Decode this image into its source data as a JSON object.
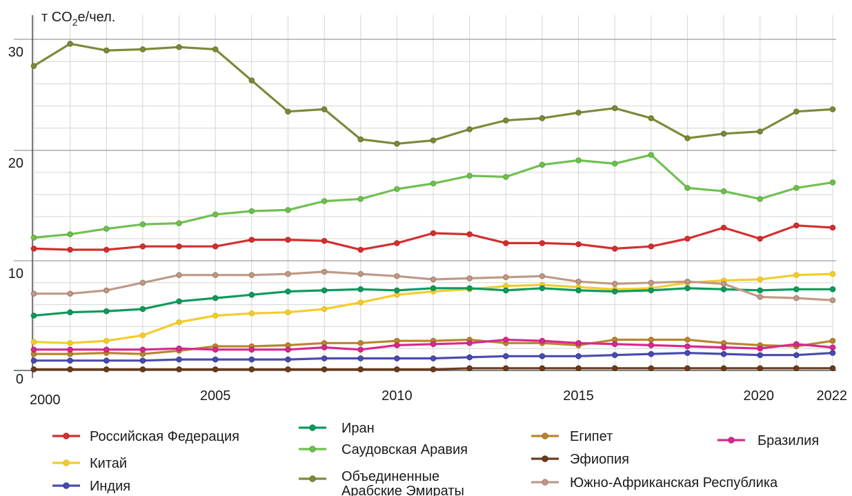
{
  "chart_data": {
    "type": "line",
    "unit": {
      "prefix": "т CO",
      "sub": "2",
      "suffix": "е/чел."
    },
    "y_tick_labels": [
      "0",
      "10",
      "20",
      "30"
    ],
    "x_tick_labels": [
      "2000",
      "2005",
      "2010",
      "2015",
      "2020",
      "2022"
    ],
    "x": [
      2000,
      2001,
      2002,
      2003,
      2004,
      2005,
      2006,
      2007,
      2008,
      2009,
      2010,
      2011,
      2012,
      2013,
      2014,
      2015,
      2016,
      2017,
      2018,
      2019,
      2020,
      2021,
      2022
    ],
    "grid": true,
    "axis_segments": [
      {
        "data_range": [
          0,
          10
        ]
      },
      {
        "data_range": [
          10,
          20
        ]
      },
      {
        "data_range": [
          20,
          30
        ]
      }
    ],
    "legend_position": "bottom",
    "series": [
      {
        "name": "Российская Федерация",
        "color": "#d32f2f",
        "marker": "#c62828",
        "values": [
          11.1,
          11.0,
          11.0,
          11.3,
          11.3,
          11.3,
          11.9,
          11.9,
          11.8,
          11.0,
          11.6,
          12.5,
          12.4,
          11.6,
          11.6,
          11.5,
          11.1,
          11.3,
          12.0,
          13.0,
          12.0,
          13.2,
          13.0
        ]
      },
      {
        "name": "Китай",
        "color": "#f2cc2e",
        "marker": "#e8c020",
        "values": [
          2.6,
          2.5,
          2.7,
          3.2,
          4.4,
          5.0,
          5.2,
          5.3,
          5.6,
          6.2,
          6.9,
          7.2,
          7.4,
          7.7,
          7.8,
          7.6,
          7.4,
          7.5,
          8.0,
          8.2,
          8.3,
          8.7,
          8.8
        ]
      },
      {
        "name": "Индия",
        "color": "#4a4cb0",
        "marker": "#3b3d9a",
        "values": [
          0.9,
          0.9,
          0.9,
          0.9,
          1.0,
          1.0,
          1.0,
          1.0,
          1.1,
          1.1,
          1.1,
          1.1,
          1.2,
          1.3,
          1.3,
          1.3,
          1.4,
          1.5,
          1.6,
          1.5,
          1.4,
          1.4,
          1.6
        ]
      },
      {
        "name": "Иран",
        "color": "#0e9a5c",
        "marker": "#0b8a50",
        "values": [
          5.0,
          5.3,
          5.4,
          5.6,
          6.3,
          6.6,
          6.9,
          7.2,
          7.3,
          7.4,
          7.3,
          7.5,
          7.5,
          7.3,
          7.5,
          7.3,
          7.2,
          7.3,
          7.5,
          7.4,
          7.3,
          7.4,
          7.4
        ]
      },
      {
        "name": "Саудовская Аравия",
        "color": "#70c050",
        "marker": "#5eae40",
        "values": [
          12.1,
          12.4,
          12.9,
          13.3,
          13.4,
          14.2,
          14.5,
          14.6,
          15.4,
          15.6,
          16.5,
          17.0,
          17.7,
          17.6,
          18.7,
          19.1,
          18.8,
          19.6,
          16.6,
          16.3,
          15.6,
          16.6,
          17.1
        ]
      },
      {
        "name": "Объединенные Арабские Эмираты",
        "color": "#7a8b3a",
        "marker": "#6a7a2e",
        "values": [
          27.6,
          29.6,
          29.0,
          29.1,
          29.3,
          29.1,
          26.3,
          23.5,
          23.7,
          21.0,
          20.6,
          20.9,
          21.9,
          22.7,
          22.9,
          23.4,
          23.8,
          22.9,
          21.1,
          21.5,
          21.7,
          23.5,
          23.7
        ]
      },
      {
        "name": "Египет",
        "color": "#b8862f",
        "marker": "#a67626",
        "values": [
          1.5,
          1.5,
          1.6,
          1.5,
          1.8,
          2.2,
          2.2,
          2.3,
          2.5,
          2.5,
          2.7,
          2.7,
          2.8,
          2.5,
          2.5,
          2.3,
          2.8,
          2.8,
          2.8,
          2.5,
          2.3,
          2.2,
          2.7
        ]
      },
      {
        "name": "Эфиопия",
        "color": "#6b3d1e",
        "marker": "#5a3015",
        "values": [
          0.1,
          0.1,
          0.1,
          0.1,
          0.1,
          0.1,
          0.1,
          0.1,
          0.1,
          0.1,
          0.1,
          0.1,
          0.2,
          0.2,
          0.2,
          0.2,
          0.2,
          0.2,
          0.2,
          0.2,
          0.2,
          0.2,
          0.2
        ]
      },
      {
        "name": "Южно-Африканская Республика",
        "color": "#bf9a86",
        "marker": "#a88572",
        "values": [
          7.0,
          7.0,
          7.3,
          8.0,
          8.7,
          8.7,
          8.7,
          8.8,
          9.0,
          8.8,
          8.6,
          8.3,
          8.4,
          8.5,
          8.6,
          8.1,
          7.9,
          8.0,
          8.1,
          7.9,
          6.7,
          6.6,
          6.4
        ]
      },
      {
        "name": "Бразилия",
        "color": "#d82a8e",
        "marker": "#c21f7c",
        "values": [
          1.9,
          1.9,
          1.9,
          1.9,
          2.0,
          1.9,
          1.9,
          1.9,
          2.1,
          1.9,
          2.3,
          2.4,
          2.5,
          2.8,
          2.7,
          2.5,
          2.4,
          2.3,
          2.2,
          2.1,
          2.0,
          2.4,
          2.1
        ]
      }
    ]
  },
  "legend": [
    {
      "label": "Российская Федерация",
      "series": 0
    },
    {
      "label": "Китай",
      "series": 1
    },
    {
      "label": "Индия",
      "series": 2
    },
    {
      "label": "Иран",
      "series": 3
    },
    {
      "label": "Саудовская Аравия",
      "series": 4
    },
    {
      "label_lines": [
        "Объединенные",
        "Арабские Эмираты"
      ],
      "series": 5
    },
    {
      "label": "Египет",
      "series": 6
    },
    {
      "label": "Эфиопия",
      "series": 7
    },
    {
      "label": "Южно-Африканская Республика",
      "series": 8
    },
    {
      "label": "Бразилия",
      "series": 9
    }
  ]
}
